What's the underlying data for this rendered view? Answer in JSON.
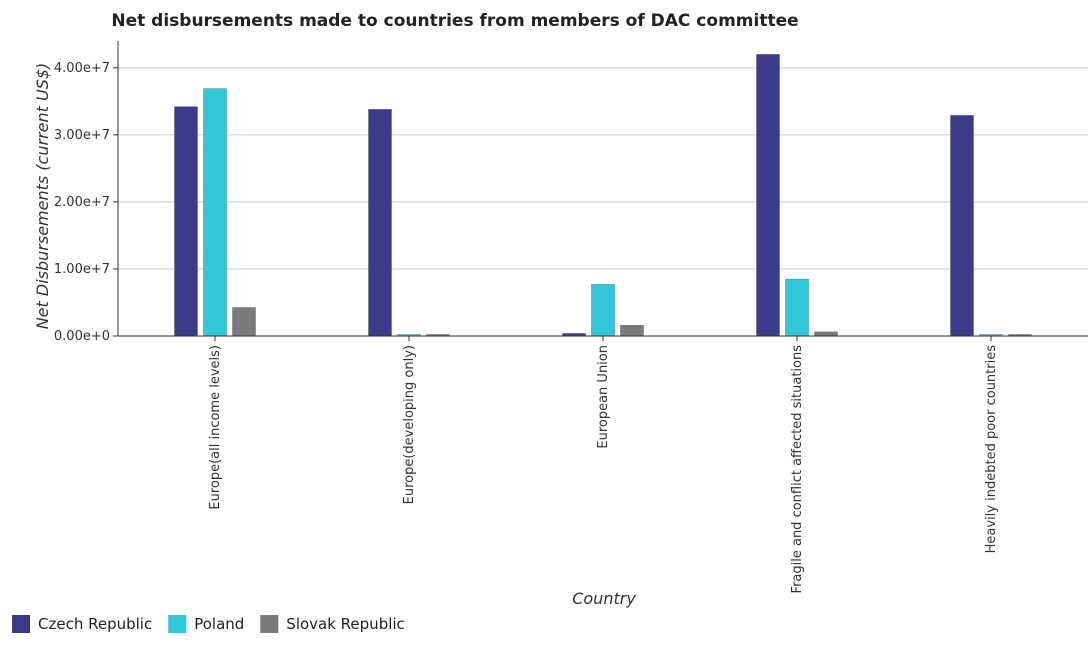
{
  "chart_data": {
    "type": "bar",
    "title": "Net disbursements made to countries from members of DAC committee",
    "xlabel": "Country",
    "ylabel": "Net Disbursements (current US$)",
    "categories": [
      "Europe(all income levels)",
      "Europe(developing only)",
      "European Union",
      "Fragile and conflict affected situations",
      "Heavily indebted poor countries"
    ],
    "series": [
      {
        "name": "Czech Republic",
        "color": "#3b3b8c",
        "values": [
          34200000,
          33800000,
          380000,
          42000000,
          32900000
        ]
      },
      {
        "name": "Poland",
        "color": "#30c8d8",
        "values": [
          36900000,
          30000,
          7700000,
          8500000,
          20000
        ]
      },
      {
        "name": "Slovak Republic",
        "color": "#7a7a7a",
        "values": [
          4250000,
          110000,
          1600000,
          620000,
          150000
        ]
      }
    ],
    "y_ticks": [
      {
        "value": 0,
        "label": "0.00e+0"
      },
      {
        "value": 10000000,
        "label": "1.00e+7"
      },
      {
        "value": 20000000,
        "label": "2.00e+7"
      },
      {
        "value": 30000000,
        "label": "3.00e+7"
      },
      {
        "value": 40000000,
        "label": "4.00e+7"
      }
    ],
    "ylim": [
      0,
      44000000
    ],
    "grid": true,
    "legend_position": "bottom-left"
  }
}
